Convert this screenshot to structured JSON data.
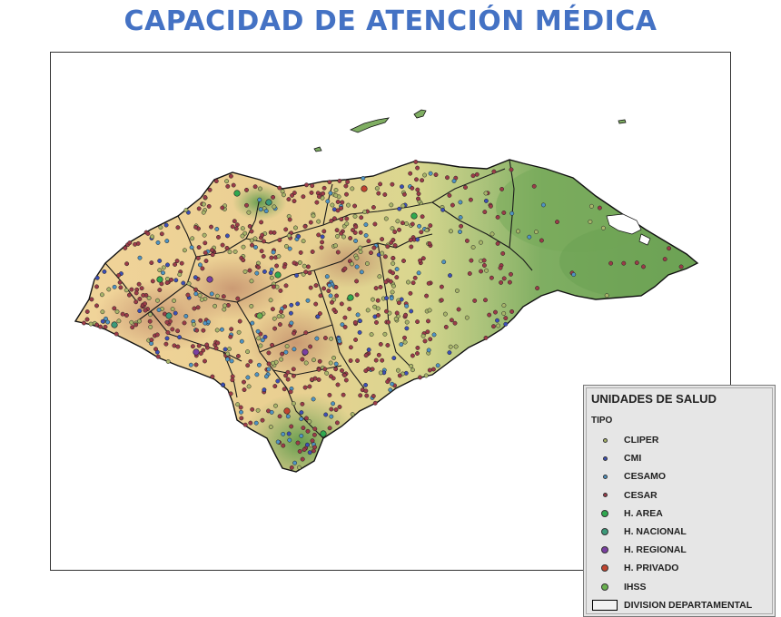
{
  "title": "CAPACIDAD DE ATENCIÓN MÉDICA",
  "legend": {
    "title": "UNIDADES DE SALUD",
    "subtitle": "TIPO",
    "items": [
      {
        "label": "CLIPER",
        "color": "#a8b56a",
        "size": "small"
      },
      {
        "label": "CMI",
        "color": "#3d4fb5",
        "size": "small"
      },
      {
        "label": "CESAMO",
        "color": "#4f93c2",
        "size": "small"
      },
      {
        "label": "CESAR",
        "color": "#9b3b48",
        "size": "small"
      },
      {
        "label": "H. AREA",
        "color": "#2fa84f",
        "size": "large"
      },
      {
        "label": "H. NACIONAL",
        "color": "#3c9a7a",
        "size": "large"
      },
      {
        "label": "H. REGIONAL",
        "color": "#7a3fa1",
        "size": "large"
      },
      {
        "label": "H. PRIVADO",
        "color": "#c0442f",
        "size": "large"
      },
      {
        "label": "IHSS",
        "color": "#69b04f",
        "size": "large"
      },
      {
        "label": "DIVISION DEPARTAMENTAL",
        "symbol": "box"
      }
    ]
  }
}
